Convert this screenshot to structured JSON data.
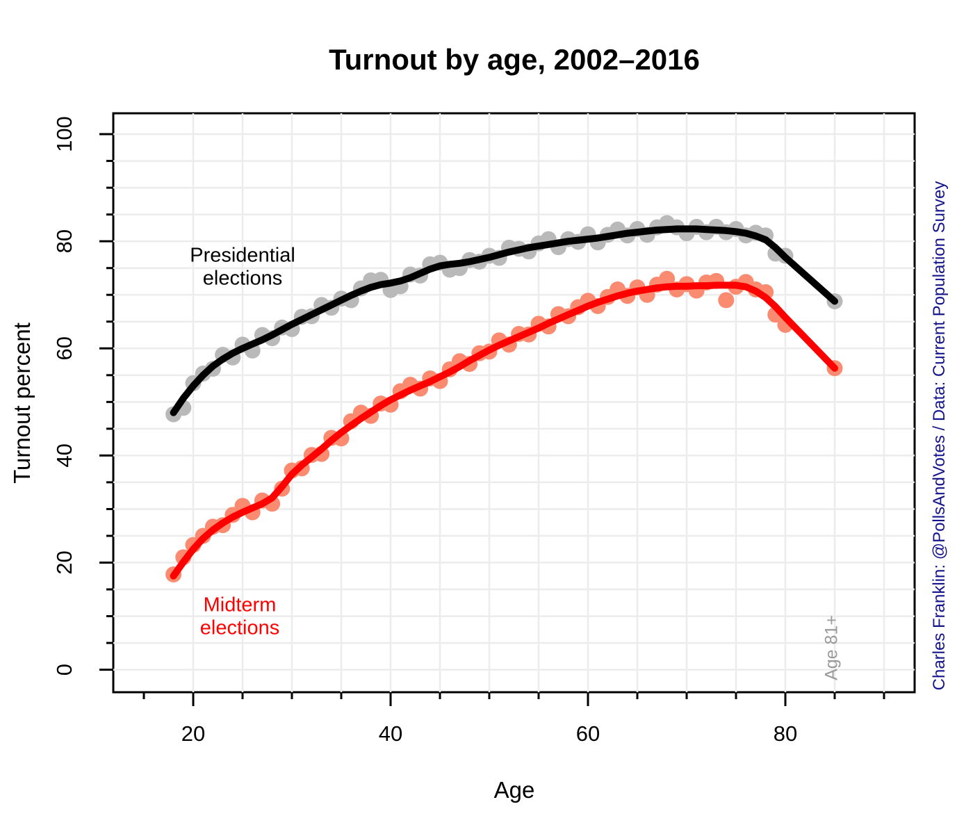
{
  "title": "Turnout by age, 2002–2016",
  "annotations": {
    "presidential_label": "Presidential\nelections",
    "midterm_label": "Midterm\nelections",
    "age_group_note": "Age 81+",
    "caption": "Charles Franklin: @PollsAndVotes / Data: Current Population Survey"
  },
  "colors": {
    "presidential_line": "#000000",
    "presidential_points": "#b9b9b9",
    "midterm_line": "#ff0000",
    "midterm_points": "#fa8a70",
    "grid": "#ececec",
    "axis": "#000000",
    "caption_text": "#14148c",
    "age_note_text": "#9a9a9a"
  },
  "chart_data": {
    "type": "scatter",
    "title": "Turnout by age, 2002–2016",
    "xlabel": "Age",
    "ylabel": "Turnout percent",
    "x_ticks": [
      20,
      40,
      60,
      80
    ],
    "y_ticks": [
      0,
      20,
      40,
      60,
      80,
      100
    ],
    "minor_tick_step": 5,
    "grid_step": 5,
    "xlim": [
      11.9,
      93.1
    ],
    "ylim": [
      -4.2,
      103.9
    ],
    "grid_x_range": [
      20,
      90
    ],
    "grid_y_range": [
      0,
      100
    ],
    "note": "last point is the Age 81+ group plotted at x=85",
    "ages": [
      18,
      19,
      20,
      21,
      22,
      23,
      24,
      25,
      26,
      27,
      28,
      29,
      30,
      31,
      32,
      33,
      34,
      35,
      36,
      37,
      38,
      39,
      40,
      41,
      42,
      43,
      44,
      45,
      46,
      47,
      48,
      49,
      50,
      51,
      52,
      53,
      54,
      55,
      56,
      57,
      58,
      59,
      60,
      61,
      62,
      63,
      64,
      65,
      66,
      67,
      68,
      69,
      70,
      71,
      72,
      73,
      74,
      75,
      76,
      77,
      78,
      79,
      80,
      85
    ],
    "series": [
      {
        "name": "Presidential elections",
        "line_color": "#000000",
        "point_color": "#b9b9b9",
        "points": [
          47.7,
          48.9,
          53.5,
          55.3,
          56.2,
          58.8,
          58.3,
          60.7,
          59.6,
          62.5,
          61.9,
          63.9,
          63.6,
          65.9,
          66.0,
          68.1,
          67.6,
          69.3,
          69.0,
          71.2,
          72.7,
          72.8,
          70.9,
          71.6,
          73.8,
          73.6,
          75.7,
          76.0,
          74.7,
          75.0,
          76.5,
          76.2,
          77.3,
          76.9,
          78.8,
          78.6,
          78.1,
          79.6,
          80.4,
          78.9,
          80.4,
          79.9,
          81.3,
          79.8,
          81.2,
          82.2,
          81.1,
          82.3,
          81.2,
          82.6,
          83.4,
          82.6,
          81.5,
          82.7,
          81.7,
          82.7,
          81.7,
          82.3,
          81.1,
          81.6,
          81.1,
          77.7,
          77.3,
          68.8
        ],
        "smooth": [
          48.0,
          50.7,
          53.0,
          55.0,
          56.7,
          58.0,
          59.1,
          60.0,
          60.8,
          61.6,
          62.5,
          63.5,
          64.5,
          65.4,
          66.3,
          67.2,
          68.1,
          69.0,
          69.9,
          70.7,
          71.4,
          71.9,
          72.2,
          72.6,
          73.2,
          74.0,
          74.8,
          75.4,
          75.7,
          75.9,
          76.2,
          76.6,
          77.0,
          77.5,
          78.0,
          78.4,
          78.8,
          79.1,
          79.4,
          79.7,
          80.0,
          80.2,
          80.4,
          80.6,
          80.9,
          81.2,
          81.5,
          81.7,
          81.9,
          82.1,
          82.2,
          82.3,
          82.3,
          82.3,
          82.2,
          82.1,
          82.0,
          81.8,
          81.5,
          81.0,
          80.3,
          78.8,
          77.0,
          68.8
        ]
      },
      {
        "name": "Midterm elections",
        "line_color": "#ff0000",
        "point_color": "#fa8a70",
        "points": [
          17.8,
          21.0,
          23.3,
          25.0,
          26.7,
          27.0,
          28.9,
          30.6,
          29.4,
          31.6,
          31.0,
          33.8,
          37.2,
          37.6,
          40.1,
          40.3,
          43.3,
          43.2,
          46.4,
          48.0,
          47.4,
          49.7,
          49.5,
          52.0,
          53.2,
          52.5,
          54.4,
          53.9,
          56.1,
          57.6,
          57.1,
          59.1,
          59.4,
          61.5,
          60.7,
          62.7,
          62.6,
          64.6,
          64.1,
          66.4,
          66.0,
          67.7,
          68.9,
          67.9,
          69.6,
          71.0,
          69.8,
          71.4,
          70.0,
          71.9,
          73.0,
          71.0,
          72.0,
          70.8,
          72.3,
          72.6,
          69.0,
          71.5,
          72.4,
          71.0,
          70.5,
          66.3,
          64.4,
          56.3
        ],
        "smooth": [
          17.5,
          20.1,
          22.5,
          24.5,
          26.1,
          27.4,
          28.5,
          29.4,
          30.2,
          31.0,
          32.1,
          34.2,
          36.5,
          38.2,
          39.7,
          41.2,
          42.8,
          44.3,
          45.6,
          46.9,
          48.1,
          49.3,
          50.4,
          51.3,
          52.2,
          53.0,
          53.8,
          54.7,
          55.6,
          56.6,
          57.7,
          58.7,
          59.7,
          60.6,
          61.4,
          62.2,
          63.0,
          63.8,
          64.7,
          65.5,
          66.3,
          67.1,
          67.9,
          68.6,
          69.2,
          69.8,
          70.3,
          70.7,
          71.0,
          71.3,
          71.5,
          71.6,
          71.6,
          71.7,
          71.7,
          71.8,
          71.8,
          71.8,
          71.5,
          70.7,
          69.5,
          67.8,
          65.8,
          56.3
        ]
      }
    ]
  }
}
